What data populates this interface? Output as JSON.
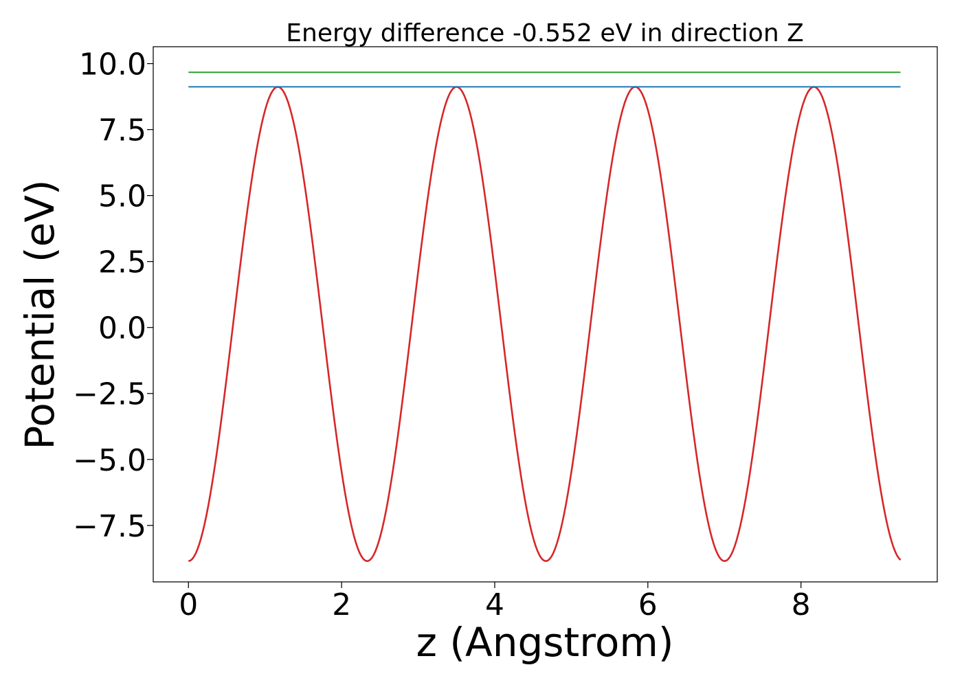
{
  "chart_data": {
    "type": "line",
    "title": "Energy difference -0.552 eV in direction Z",
    "xlabel": "z (Angstrom)",
    "ylabel": "Potential (eV)",
    "xlim": [
      -0.46,
      9.78
    ],
    "ylim": [
      -9.64,
      10.64
    ],
    "xticks": [
      0,
      2,
      4,
      6,
      8
    ],
    "xtick_labels": [
      "0",
      "2",
      "4",
      "6",
      "8"
    ],
    "yticks": [
      -7.5,
      -5.0,
      -2.5,
      0.0,
      2.5,
      5.0,
      7.5,
      10.0
    ],
    "ytick_labels": [
      "−7.5",
      "−5.0",
      "−2.5",
      "0.0",
      "2.5",
      "5.0",
      "7.5",
      "10.0"
    ],
    "grid": false,
    "legend": "none",
    "series": [
      {
        "color": "#d62728",
        "function": "cosine",
        "mean": 0.134,
        "amplitude": -8.986,
        "period": 2.334,
        "x_start": 0,
        "x_end": 9.3,
        "x": [
          0,
          0.583,
          1.167,
          1.75,
          2.334,
          2.917,
          3.501,
          4.084,
          4.668,
          5.251,
          5.835,
          6.418,
          7.002,
          7.585,
          8.169,
          8.752,
          9.3
        ],
        "y": [
          -8.85,
          0.13,
          9.12,
          0.13,
          -8.85,
          0.13,
          9.12,
          0.13,
          -8.85,
          0.13,
          9.12,
          0.13,
          -8.85,
          0.13,
          9.12,
          0.13,
          -8.85
        ]
      },
      {
        "color": "#1f77b4",
        "x": [
          0,
          9.3
        ],
        "y": [
          9.12,
          9.12
        ]
      },
      {
        "color": "#2ca02c",
        "x": [
          0,
          9.3
        ],
        "y": [
          9.67,
          9.67
        ]
      }
    ],
    "colors": {
      "axis": "#000000",
      "background": "#ffffff"
    }
  }
}
